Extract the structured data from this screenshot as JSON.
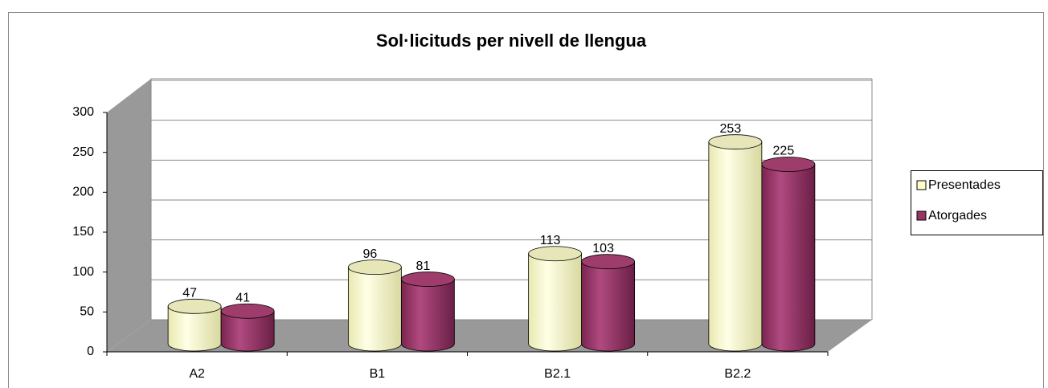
{
  "chart_data": {
    "type": "bar3d",
    "title": "Sol·licituds per nivell de llengua",
    "categories": [
      "A2",
      "B1",
      "B2.1",
      "B2.2"
    ],
    "series": [
      {
        "name": "Presentades",
        "color": "#ffffcc",
        "values": [
          47,
          96,
          113,
          253
        ]
      },
      {
        "name": "Atorgades",
        "color": "#993366",
        "values": [
          41,
          81,
          103,
          225
        ]
      }
    ],
    "ylim": [
      0,
      300
    ],
    "yticks": [
      0,
      50,
      100,
      150,
      200,
      250,
      300
    ],
    "grid": true,
    "legend": "right"
  }
}
